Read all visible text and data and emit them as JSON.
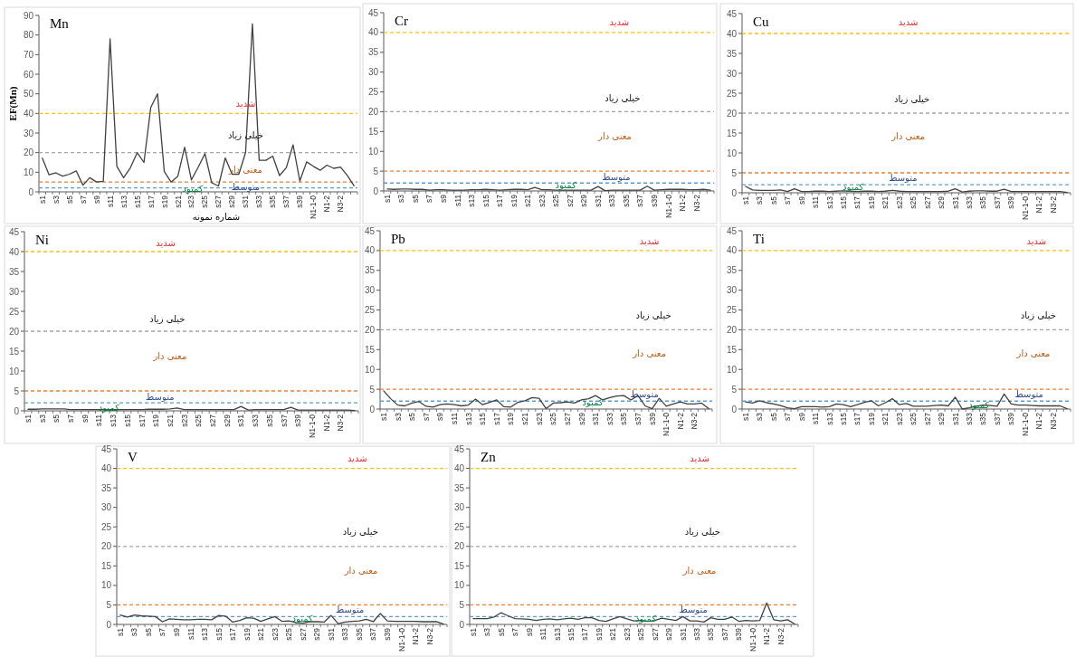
{
  "chart_data": [
    {
      "type": "line",
      "title": "Mn",
      "xlabel": "شماره نمونه",
      "ylabel": "EF(Mn)",
      "categories": [
        "s1",
        null,
        "s3",
        null,
        "s5",
        null,
        "s7",
        null,
        "s9",
        null,
        "s11",
        null,
        "s13",
        null,
        "s15",
        null,
        "s17",
        null,
        "s19",
        null,
        "s21",
        null,
        "s23",
        null,
        "s25",
        null,
        "s27",
        null,
        "s29",
        null,
        "s31",
        null,
        "s33",
        null,
        "s35",
        null,
        "s37",
        null,
        "s39",
        null,
        "N1-1-0",
        null,
        "N1-2",
        null,
        "N3-2",
        null,
        null
      ],
      "color": "#404040",
      "values": [
        17.2,
        8.7,
        9.7,
        8,
        9,
        10.7,
        3.4,
        7.2,
        5,
        5.4,
        78,
        13,
        7.2,
        12.3,
        20,
        15,
        43,
        50,
        10.3,
        5,
        8,
        22.8,
        6.1,
        12.6,
        19.5,
        4.6,
        3,
        17.3,
        9,
        9,
        20.2,
        85.7,
        16.1,
        16.1,
        18.2,
        8.3,
        12.3,
        24,
        5.5,
        15.3,
        13,
        11,
        13.6,
        12,
        12.6,
        8.4,
        3.1
      ],
      "ylim": [
        0,
        90
      ],
      "yticks": [
        0,
        10,
        20,
        30,
        40,
        50,
        60,
        70,
        80,
        90
      ],
      "ref_lines": [
        {
          "axis": "y",
          "value": 40,
          "color": "#ffc000",
          "line_style": "dashed"
        },
        {
          "axis": "y",
          "value": 20,
          "color": "#a5a5a5",
          "line_style": "dashed"
        },
        {
          "axis": "y",
          "value": 5,
          "color": "#ed7d31",
          "line_style": "dashed"
        },
        {
          "axis": "y",
          "value": 2,
          "color": "#5b9bd5",
          "line_style": "dashed"
        }
      ],
      "annotations": [
        "شدید",
        "خیلی زیاد",
        "معنی دار",
        "متوسط",
        "کمبود"
      ]
    },
    {
      "type": "line",
      "title": "Cr",
      "categories": [
        "s1",
        null,
        "s3",
        null,
        "s5",
        null,
        "s7",
        null,
        "s9",
        null,
        "s11",
        null,
        "s13",
        null,
        "s15",
        null,
        "s17",
        null,
        "s19",
        null,
        "s21",
        null,
        "s23",
        null,
        "s25",
        null,
        "s27",
        null,
        "s29",
        null,
        "s31",
        null,
        "s33",
        null,
        "s35",
        null,
        "s37",
        null,
        "s39",
        null,
        "N1-1-0",
        null,
        "N1-2",
        null,
        "N3-2",
        null,
        null
      ],
      "color": "#404040",
      "values": [
        0.5,
        0.4,
        0.5,
        0.5,
        0.4,
        0.4,
        0.2,
        0.3,
        0.3,
        0.2,
        0.2,
        0.2,
        0.3,
        0.3,
        0.4,
        0.3,
        0.2,
        0.3,
        0.4,
        0.4,
        0.3,
        0.9,
        0.3,
        0.3,
        0.2,
        0.2,
        0.2,
        0.2,
        0.2,
        0.2,
        1.1,
        0.1,
        0.2,
        0.2,
        0.2,
        0.2,
        0.2,
        1.2,
        0.2,
        0.3,
        0.4,
        0.4,
        0.4,
        0.3,
        0.3,
        0.4,
        0.2
      ],
      "ylim": [
        0,
        45
      ],
      "yticks": [
        0,
        5,
        10,
        15,
        20,
        25,
        30,
        35,
        40,
        45
      ],
      "ref_lines": [
        {
          "axis": "y",
          "value": 40,
          "color": "#ffc000",
          "line_style": "dashed"
        },
        {
          "axis": "y",
          "value": 20,
          "color": "#a5a5a5",
          "line_style": "dashed"
        },
        {
          "axis": "y",
          "value": 5,
          "color": "#ed7d31",
          "line_style": "dashed"
        },
        {
          "axis": "y",
          "value": 2,
          "color": "#5b9bd5",
          "line_style": "dashed"
        }
      ],
      "annotations": [
        "شدید",
        "خیلی زیاد",
        "معنی دار",
        "متوسط",
        "کمبود"
      ]
    },
    {
      "type": "line",
      "title": "Cu",
      "categories": [
        "s1",
        null,
        "s3",
        null,
        "s5",
        null,
        "s7",
        null,
        "s9",
        null,
        "s11",
        null,
        "s13",
        null,
        "s15",
        null,
        "s17",
        null,
        "s19",
        null,
        "s21",
        null,
        "s23",
        null,
        "s25",
        null,
        "s27",
        null,
        "s29",
        null,
        "s31",
        null,
        "s33",
        null,
        "s35",
        null,
        "s37",
        null,
        "s39",
        null,
        "N1-1-0",
        null,
        "N1-2",
        null,
        "N3-2",
        null,
        null
      ],
      "color": "#404040",
      "values": [
        1.6,
        0.7,
        0.6,
        0.6,
        0.6,
        0.7,
        0.3,
        1.0,
        0.3,
        0.3,
        0.4,
        0.4,
        0.3,
        0.4,
        0.5,
        0.4,
        0.3,
        0.4,
        0.4,
        0.3,
        0.4,
        0.6,
        0.4,
        0.3,
        0.3,
        0.3,
        0.3,
        0.3,
        0.3,
        0.4,
        1.0,
        0.2,
        0.4,
        0.5,
        0.5,
        0.4,
        0.4,
        0.9,
        0.3,
        0.3,
        0.3,
        0.3,
        0.3,
        0.3,
        0.3,
        0.3,
        0.1
      ],
      "ylim": [
        0,
        45
      ],
      "yticks": [
        0,
        5,
        10,
        15,
        20,
        25,
        30,
        35,
        40,
        45
      ],
      "ref_lines": [
        {
          "axis": "y",
          "value": 40,
          "color": "#ffc000",
          "line_style": "dashed"
        },
        {
          "axis": "y",
          "value": 20,
          "color": "#a5a5a5",
          "line_style": "dashed"
        },
        {
          "axis": "y",
          "value": 5,
          "color": "#ed7d31",
          "line_style": "dashed"
        },
        {
          "axis": "y",
          "value": 2,
          "color": "#5b9bd5",
          "line_style": "dashed"
        }
      ],
      "annotations": [
        "شدید",
        "خیلی زیاد",
        "معنی دار",
        "متوسط",
        "کمبود"
      ]
    },
    {
      "type": "line",
      "title": "Ni",
      "categories": [
        "s1",
        null,
        "s3",
        null,
        "s5",
        null,
        "s7",
        null,
        "s9",
        null,
        "s11",
        null,
        "s13",
        null,
        "s15",
        null,
        "s17",
        null,
        "s19",
        null,
        "s21",
        null,
        "s23",
        null,
        "s25",
        null,
        "s27",
        null,
        "s29",
        null,
        "s31",
        null,
        "s33",
        null,
        "s35",
        null,
        "s37",
        null,
        "s39",
        null,
        "N1-1-0",
        null,
        "N1-2",
        null,
        "N3-2",
        null,
        null
      ],
      "color": "#404040",
      "values": [
        0.4,
        0.4,
        0.5,
        0.5,
        0.5,
        0.5,
        0.3,
        0.3,
        0.3,
        0.3,
        0.3,
        0.3,
        0.3,
        0.3,
        0.3,
        0.3,
        0.3,
        0.4,
        0.4,
        0.4,
        0.5,
        0.7,
        0.3,
        0.3,
        0.3,
        0.3,
        0.3,
        0.3,
        0.3,
        0.3,
        1.1,
        0.2,
        0.3,
        0.3,
        0.3,
        0.3,
        0.3,
        0.9,
        0.2,
        0.2,
        0.2,
        0.2,
        0.2,
        0.2,
        0.2,
        0.2,
        0.1
      ],
      "ylim": [
        0,
        45
      ],
      "yticks": [
        0,
        5,
        10,
        15,
        20,
        25,
        30,
        35,
        40,
        45
      ],
      "ref_lines": [
        {
          "axis": "y",
          "value": 40,
          "color": "#ffc000",
          "line_style": "dashed"
        },
        {
          "axis": "y",
          "value": 20,
          "color": "#a5a5a5",
          "line_style": "dashed"
        },
        {
          "axis": "y",
          "value": 5,
          "color": "#ed7d31",
          "line_style": "dashed"
        },
        {
          "axis": "y",
          "value": 2,
          "color": "#5b9bd5",
          "line_style": "dashed"
        }
      ],
      "annotations": [
        "شدید",
        "خیلی زیاد",
        "معنی دار",
        "متوسط",
        "کمبود"
      ]
    },
    {
      "type": "line",
      "title": "Pb",
      "categories": [
        "s1",
        null,
        "s3",
        null,
        "s5",
        null,
        "s7",
        null,
        "s9",
        null,
        "s11",
        null,
        "s13",
        null,
        "s15",
        null,
        "s17",
        null,
        "s19",
        null,
        "s21",
        null,
        "s23",
        null,
        "s25",
        null,
        "s27",
        null,
        "s29",
        null,
        "s31",
        null,
        "s33",
        null,
        "s35",
        null,
        "s37",
        null,
        "s39",
        null,
        "N1-1-0",
        null,
        "N1-2",
        null,
        "N3-2",
        null,
        null
      ],
      "color": "#404040",
      "values": [
        4.6,
        2.6,
        1.0,
        0.8,
        1.5,
        1.9,
        0.7,
        0.5,
        1.1,
        1.3,
        1.1,
        0.8,
        1.0,
        2.5,
        1.1,
        1.7,
        2.3,
        0.6,
        0.5,
        1.7,
        2.1,
        2.9,
        2.7,
        0.1,
        1.5,
        1.6,
        1.8,
        1.5,
        2.3,
        2.6,
        3.4,
        2.3,
        2.9,
        3.3,
        3.4,
        2.3,
        3.4,
        0.8,
        0.1,
        2.7,
        0.7,
        1.3,
        1.8,
        1.3,
        1.3,
        1.5,
        0.1
      ],
      "ylim": [
        0,
        45
      ],
      "yticks": [
        0,
        5,
        10,
        15,
        20,
        25,
        30,
        35,
        40,
        45
      ],
      "ref_lines": [
        {
          "axis": "y",
          "value": 40,
          "color": "#ffc000",
          "line_style": "dashed"
        },
        {
          "axis": "y",
          "value": 20,
          "color": "#a5a5a5",
          "line_style": "dashed"
        },
        {
          "axis": "y",
          "value": 5,
          "color": "#ed7d31",
          "line_style": "dashed"
        },
        {
          "axis": "y",
          "value": 2,
          "color": "#5b9bd5",
          "line_style": "dashed"
        }
      ],
      "annotations": [
        "شدید",
        "خیلی زیاد",
        "معنی دار",
        "متوسط",
        "کمبود"
      ]
    },
    {
      "type": "line",
      "title": "Ti",
      "categories": [
        "s1",
        null,
        "s3",
        null,
        "s5",
        null,
        "s7",
        null,
        "s9",
        null,
        "s11",
        null,
        "s13",
        null,
        "s15",
        null,
        "s17",
        null,
        "s19",
        null,
        "s21",
        null,
        "s23",
        null,
        "s25",
        null,
        "s27",
        null,
        "s29",
        null,
        "s31",
        null,
        "s33",
        null,
        "s35",
        null,
        "s37",
        null,
        "s39",
        null,
        "N1-1-0",
        null,
        "N1-2",
        null,
        "N3-2",
        null,
        null
      ],
      "color": "#404040",
      "values": [
        1.8,
        1.5,
        2.1,
        1.6,
        1.3,
        0.9,
        0.3,
        0.1,
        0.6,
        0.6,
        0.6,
        0.5,
        0.6,
        1.3,
        1.1,
        0.6,
        1.1,
        1.7,
        2.1,
        0.8,
        1.6,
        2.6,
        1.1,
        1.4,
        0.7,
        0.7,
        0.7,
        0.9,
        1.0,
        0.8,
        3.0,
        0,
        0.3,
        0.7,
        1.0,
        0.9,
        0.7,
        3.8,
        1.3,
        1.0,
        1.0,
        0.9,
        0.8,
        0.8,
        0.8,
        0.8,
        0.1
      ],
      "ylim": [
        0,
        45
      ],
      "yticks": [
        0,
        5,
        10,
        15,
        20,
        25,
        30,
        35,
        40,
        45
      ],
      "ref_lines": [
        {
          "axis": "y",
          "value": 40,
          "color": "#ffc000",
          "line_style": "dashed"
        },
        {
          "axis": "y",
          "value": 20,
          "color": "#a5a5a5",
          "line_style": "dashed"
        },
        {
          "axis": "y",
          "value": 5,
          "color": "#ed7d31",
          "line_style": "dashed"
        },
        {
          "axis": "y",
          "value": 2,
          "color": "#5b9bd5",
          "line_style": "dashed"
        }
      ],
      "annotations": [
        "شدید",
        "خیلی زیاد",
        "معنی دار",
        "متوسط",
        "کمبود"
      ]
    },
    {
      "type": "line",
      "title": "V",
      "categories": [
        "s1",
        null,
        "s3",
        null,
        "s5",
        null,
        "s7",
        null,
        "s9",
        null,
        "s11",
        null,
        "s13",
        null,
        "s15",
        null,
        "s17",
        null,
        "s19",
        null,
        "s21",
        null,
        "s23",
        null,
        "s25",
        null,
        "s27",
        null,
        "s29",
        null,
        "s31",
        null,
        "s33",
        null,
        "s35",
        null,
        "s37",
        null,
        "s39",
        null,
        "N1-1-0",
        null,
        "N1-2",
        null,
        "N3-2",
        null,
        null
      ],
      "color": "#404040",
      "values": [
        2.4,
        1.9,
        2.4,
        2.2,
        2.1,
        2.0,
        0.7,
        1.4,
        1.3,
        1.2,
        1.2,
        1.3,
        1.3,
        1.2,
        2.3,
        2.1,
        0.6,
        1.0,
        1.7,
        1.6,
        0.8,
        1.4,
        2.0,
        0.8,
        0.9,
        0.5,
        0.3,
        0.7,
        0.7,
        0.6,
        2.3,
        0.2,
        0.6,
        0.8,
        0.9,
        1.3,
        0.7,
        2.8,
        0.9,
        0.8,
        0.8,
        0.8,
        0.8,
        0.7,
        0.7,
        0.7,
        0.1
      ],
      "ylim": [
        0,
        45
      ],
      "yticks": [
        0,
        5,
        10,
        15,
        20,
        25,
        30,
        35,
        40,
        45
      ],
      "ref_lines": [
        {
          "axis": "y",
          "value": 40,
          "color": "#ffc000",
          "line_style": "dashed"
        },
        {
          "axis": "y",
          "value": 20,
          "color": "#a5a5a5",
          "line_style": "dashed"
        },
        {
          "axis": "y",
          "value": 5,
          "color": "#ed7d31",
          "line_style": "dashed"
        },
        {
          "axis": "y",
          "value": 2,
          "color": "#5b9bd5",
          "line_style": "dashed"
        }
      ],
      "annotations": [
        "شدید",
        "خیلی زیاد",
        "معنی دار",
        "متوسط",
        "کمبود"
      ]
    },
    {
      "type": "line",
      "title": "Zn",
      "categories": [
        "s1",
        null,
        "s3",
        null,
        "s5",
        null,
        "s7",
        null,
        "s9",
        null,
        "s11",
        null,
        "s13",
        null,
        "s15",
        null,
        "s17",
        null,
        "s19",
        null,
        "s21",
        null,
        "s23",
        null,
        "s25",
        null,
        "s27",
        null,
        "s29",
        null,
        "s31",
        null,
        "s33",
        null,
        "s35",
        null,
        "s37",
        null,
        "s39",
        null,
        "N1-1-0",
        null,
        "N1-2",
        null,
        "N3-2",
        null,
        null
      ],
      "color": "#404040",
      "values": [
        1.5,
        1.5,
        1.5,
        1.9,
        3.0,
        2.2,
        1.5,
        1.4,
        1.3,
        1.0,
        1.3,
        1.4,
        1.2,
        1.4,
        1.6,
        1.3,
        1.7,
        1.7,
        1.0,
        0.8,
        1.4,
        2.0,
        1.4,
        0.9,
        1.0,
        0.8,
        1.0,
        1.6,
        1.3,
        1.0,
        2.0,
        0.9,
        0.9,
        0.6,
        1.7,
        1.3,
        1.3,
        1.9,
        0.8,
        1.0,
        0.9,
        1.0,
        5.5,
        1.2,
        0.9,
        1.2,
        0.1
      ],
      "ylim": [
        0,
        45
      ],
      "yticks": [
        0,
        5,
        10,
        15,
        20,
        25,
        30,
        35,
        40,
        45
      ],
      "ref_lines": [
        {
          "axis": "y",
          "value": 40,
          "color": "#ffc000",
          "line_style": "dashed"
        },
        {
          "axis": "y",
          "value": 20,
          "color": "#a5a5a5",
          "line_style": "dashed"
        },
        {
          "axis": "y",
          "value": 5,
          "color": "#ed7d31",
          "line_style": "dashed"
        },
        {
          "axis": "y",
          "value": 2,
          "color": "#5b9bd5",
          "line_style": "dashed"
        }
      ],
      "annotations": [
        "شدید",
        "خیلی زیاد",
        "معنی دار",
        "متوسط",
        "کمبود"
      ]
    }
  ]
}
